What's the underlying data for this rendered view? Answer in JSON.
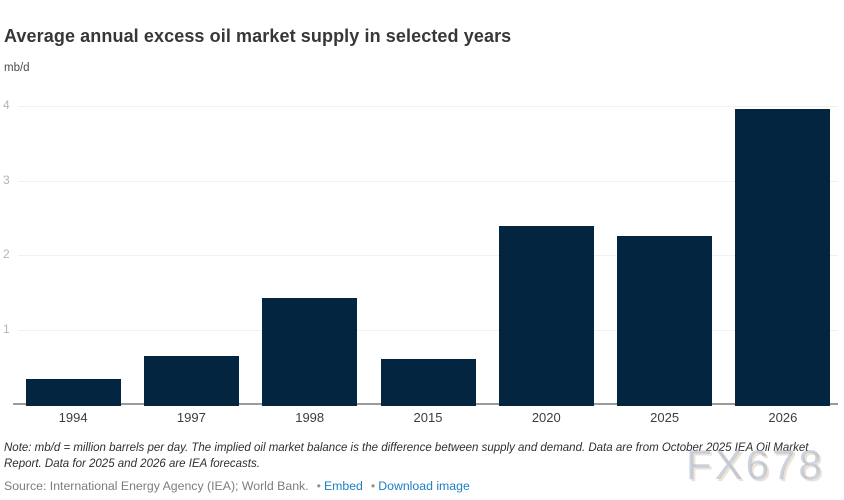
{
  "page": {
    "watermark": "FX678"
  },
  "chart_data": {
    "type": "bar",
    "title": "Average annual excess oil market supply in selected years",
    "ylabel": "mb/d",
    "categories": [
      "1994",
      "1997",
      "1998",
      "2015",
      "2020",
      "2025",
      "2026"
    ],
    "values": [
      0.34,
      0.64,
      1.43,
      0.6,
      2.39,
      2.25,
      3.96
    ],
    "yticks": [
      1,
      2,
      3,
      4
    ],
    "ylim": [
      0,
      4.3
    ],
    "grid": "horizontal",
    "legend": "none",
    "bar_color": "#032540",
    "gridline_color": "#f1f1f1",
    "axis_line_color": "#9b9b9b",
    "ytick_color": "#b5b5b5",
    "xtick_color": "#3d3d3d"
  },
  "footer": {
    "note": "Note: mb/d = million barrels per day. The implied oil market balance is the difference between supply and demand. Data are from October 2025 IEA Oil Market Report. Data for 2025 and 2026 are IEA forecasts.",
    "source": "Source: International Energy Agency (IEA); World Bank.",
    "bullet": "•",
    "embed_label": "Embed",
    "download_label": "Download image",
    "link_color": "#1b7fc4"
  }
}
